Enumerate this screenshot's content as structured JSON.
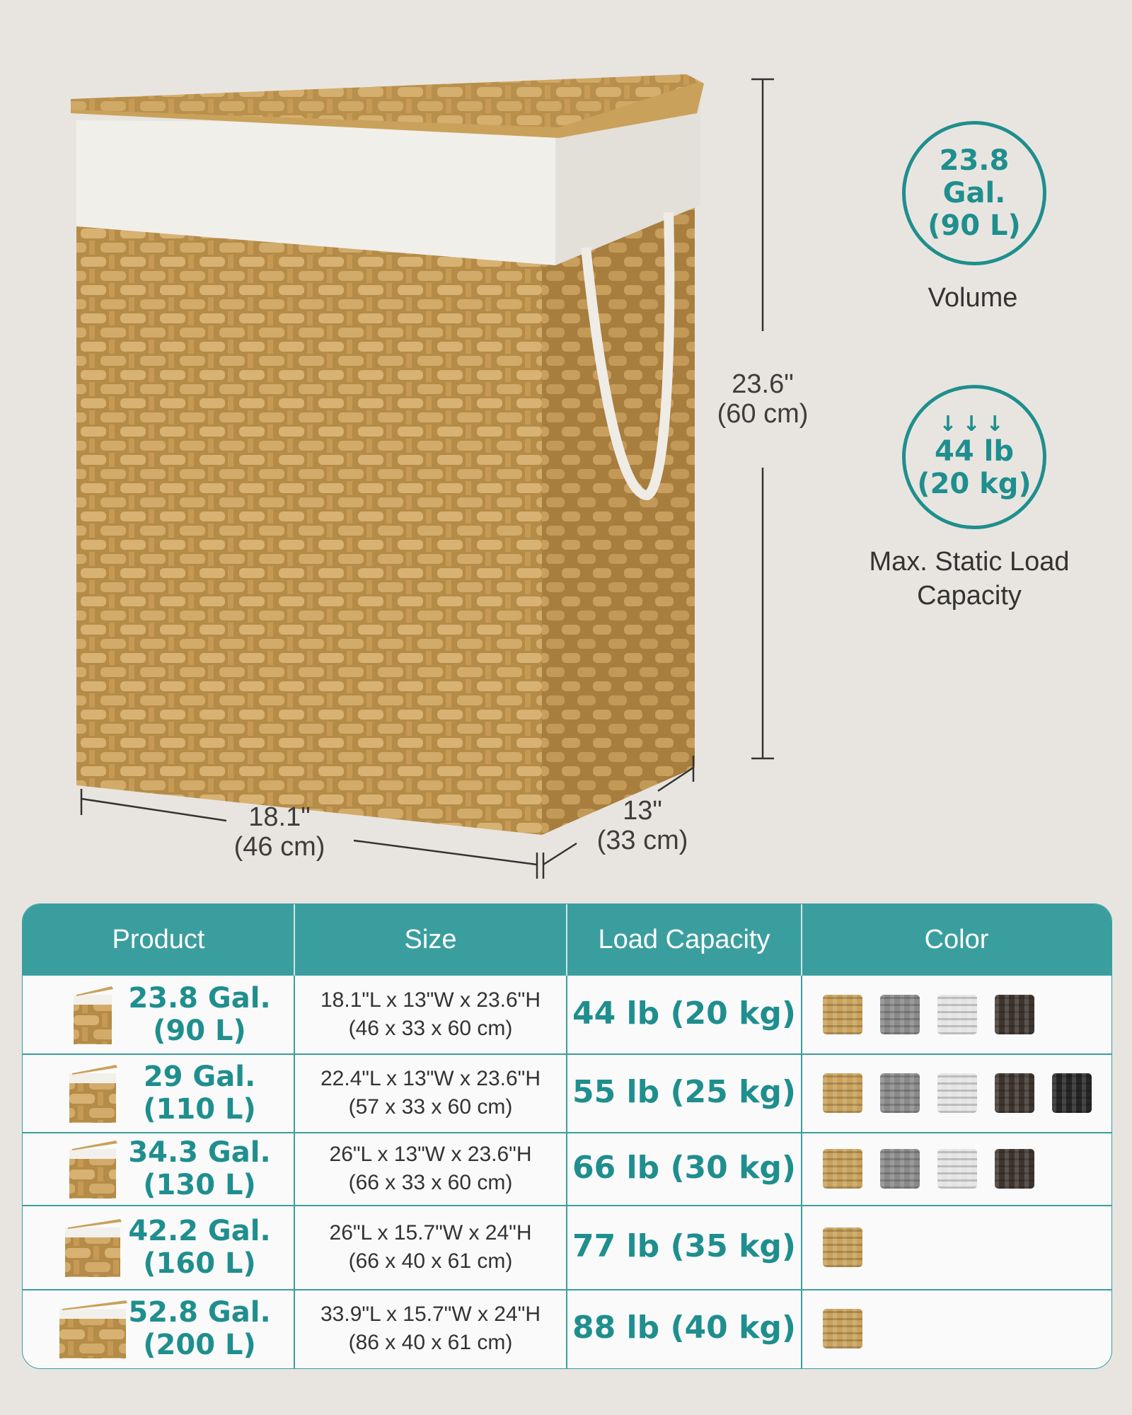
{
  "dimensions": {
    "height": {
      "in": "23.6\"",
      "cm": "(60 cm)"
    },
    "width": {
      "in": "18.1\"",
      "cm": "(46 cm)"
    },
    "depth": {
      "in": "13\"",
      "cm": "(33 cm)"
    }
  },
  "features": [
    {
      "value_line1": "23.8 Gal.",
      "value_line2": "(90 L)",
      "label": "Volume",
      "icon": "none"
    },
    {
      "value_line1": "44 lb",
      "value_line2": "(20 kg)",
      "label_line1": "Max. Static Load",
      "label_line2": "Capacity",
      "icon": "down-arrows-icon"
    }
  ],
  "table": {
    "headers": [
      "Product",
      "Size",
      "Load Capacity",
      "Color"
    ],
    "rows": [
      {
        "gal": "23.8 Gal.",
        "liters": "(90 L)",
        "size_in": "18.1\"L x 13\"W x 23.6\"H",
        "size_cm": "(46 x 33 x 60 cm)",
        "load": "44 lb (20 kg)",
        "colors": [
          "natural",
          "gray",
          "white",
          "brown"
        ]
      },
      {
        "gal": "29 Gal.",
        "liters": "(110 L)",
        "size_in": "22.4\"L x 13\"W x 23.6\"H",
        "size_cm": "(57 x 33 x 60 cm)",
        "load": "55 lb (25 kg)",
        "colors": [
          "natural",
          "gray",
          "white",
          "brown",
          "black"
        ]
      },
      {
        "gal": "34.3 Gal.",
        "liters": "(130 L)",
        "size_in": "26\"L x 13\"W x 23.6\"H",
        "size_cm": "(66 x 33 x 60 cm)",
        "load": "66 lb (30 kg)",
        "colors": [
          "natural",
          "gray",
          "white",
          "brown"
        ]
      },
      {
        "gal": "42.2 Gal.",
        "liters": "(160 L)",
        "size_in": "26\"L x 15.7\"W x 24\"H",
        "size_cm": "(66 x 40 x 61 cm)",
        "load": "77 lb (35 kg)",
        "colors": [
          "natural"
        ]
      },
      {
        "gal": "52.8 Gal.",
        "liters": "(200 L)",
        "size_in": "33.9\"L x 15.7\"W x 24\"H",
        "size_cm": "(86 x 40 x 61 cm)",
        "load": "88 lb (40 kg)",
        "colors": [
          "natural"
        ]
      }
    ]
  },
  "colors": {
    "accent": "#3b9e9e",
    "accent_text": "#1f8e8e",
    "background": "#e8e5e0",
    "natural": "#c9a15a",
    "gray": "#8a8a8a",
    "white": "#e4e4e4",
    "brown": "#3e352f",
    "black": "#262626"
  }
}
